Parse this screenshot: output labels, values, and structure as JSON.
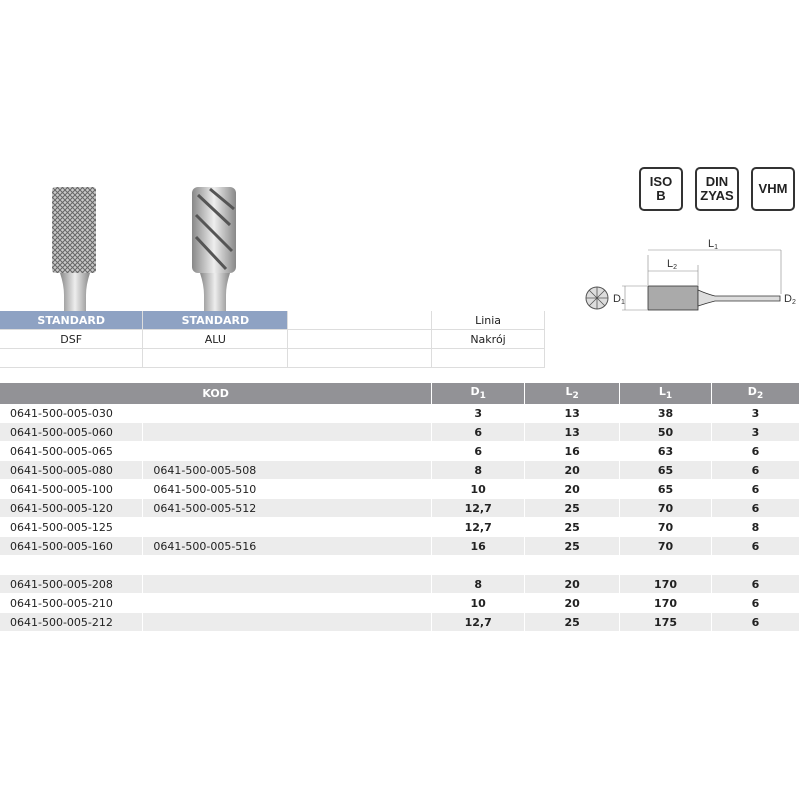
{
  "badges": [
    {
      "l1": "ISO",
      "l2": "B"
    },
    {
      "l1": "DIN",
      "l2": "ZYAS"
    },
    {
      "l1": "VHM",
      "l2": ""
    }
  ],
  "diagram": {
    "L1": "L",
    "L1s": "1",
    "L2": "L",
    "L2s": "2",
    "D1": "D",
    "D1s": "1",
    "D2": "D",
    "D2s": "2"
  },
  "top_table": {
    "row1": [
      "STANDARD",
      "STANDARD",
      "",
      "Linia"
    ],
    "row2": [
      "DSF",
      "ALU",
      "",
      "Nakrój"
    ]
  },
  "table": {
    "headers": [
      {
        "t": "KOD",
        "s": ""
      },
      {
        "t": "D",
        "s": "1"
      },
      {
        "t": "L",
        "s": "2"
      },
      {
        "t": "L",
        "s": "1"
      },
      {
        "t": "D",
        "s": "2"
      }
    ],
    "rows": [
      [
        "0641-500-005-030",
        "",
        "3",
        "13",
        "38",
        "3"
      ],
      [
        "0641-500-005-060",
        "",
        "6",
        "13",
        "50",
        "3"
      ],
      [
        "0641-500-005-065",
        "",
        "6",
        "16",
        "63",
        "6"
      ],
      [
        "0641-500-005-080",
        "0641-500-005-508",
        "8",
        "20",
        "65",
        "6"
      ],
      [
        "0641-500-005-100",
        "0641-500-005-510",
        "10",
        "20",
        "65",
        "6"
      ],
      [
        "0641-500-005-120",
        "0641-500-005-512",
        "12,7",
        "25",
        "70",
        "6"
      ],
      [
        "0641-500-005-125",
        "",
        "12,7",
        "25",
        "70",
        "8"
      ],
      [
        "0641-500-005-160",
        "0641-500-005-516",
        "16",
        "25",
        "70",
        "6"
      ],
      [
        "",
        "",
        "",
        "",
        "",
        ""
      ],
      [
        "0641-500-005-208",
        "",
        "8",
        "20",
        "170",
        "6"
      ],
      [
        "0641-500-005-210",
        "",
        "10",
        "20",
        "170",
        "6"
      ],
      [
        "0641-500-005-212",
        "",
        "12,7",
        "25",
        "175",
        "6"
      ]
    ]
  }
}
